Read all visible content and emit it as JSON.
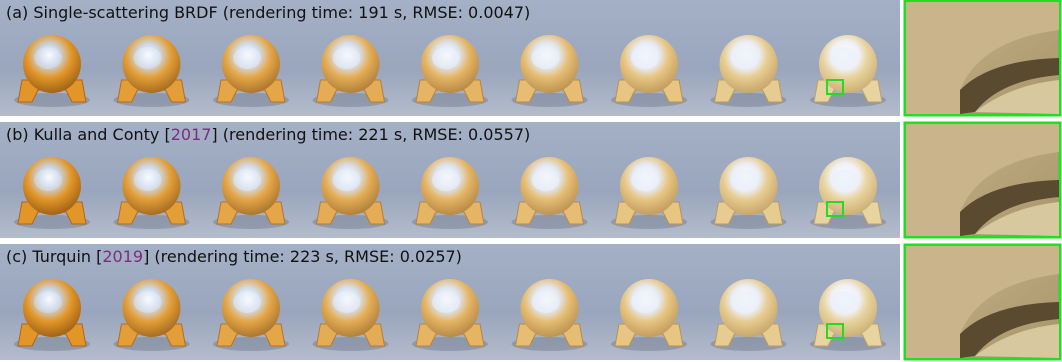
{
  "figure": {
    "rows": [
      {
        "prefix": "(a) Single-scattering BRDF (rendering time: 191 s, RMSE: 0.0047)"
      },
      {
        "prefix": "(b) Kulla and Conty [",
        "citation": "2017",
        "suffix": "] (rendering time: 221 s, RMSE: 0.0557)"
      },
      {
        "prefix": "(c) Turquin [",
        "citation": "2019",
        "suffix": "] (rendering time: 223 s, RMSE: 0.0257)"
      }
    ]
  }
}
